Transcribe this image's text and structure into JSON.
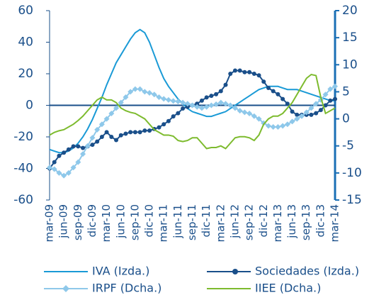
{
  "chart_data": {
    "type": "line",
    "categories": [
      "mar-09",
      null,
      null,
      "jun-09",
      null,
      null,
      "sep-09",
      null,
      null,
      "dic-09",
      null,
      null,
      "mar-10",
      null,
      null,
      "jun-10",
      null,
      null,
      "sep-10",
      null,
      null,
      "dic-10",
      null,
      null,
      "mar-11",
      null,
      null,
      "jun-11",
      null,
      null,
      "sep-11",
      null,
      null,
      "dic-11",
      null,
      null,
      "mar-12",
      null,
      null,
      "jun-12",
      null,
      null,
      "sep-12",
      null,
      null,
      "dic-12",
      null,
      null,
      "mar-13",
      null,
      null,
      "jun-13",
      null,
      null,
      "sep-13",
      null,
      null,
      "dic-13",
      null,
      null,
      "mar-14"
    ],
    "series": [
      {
        "name": "IVA (Izda.)",
        "color": "#1a9ad6",
        "axis": "y",
        "marker": "none",
        "values": [
          -28,
          -29,
          -30,
          -30,
          -29,
          -27,
          -24,
          -20,
          -15,
          -9,
          -2,
          5,
          13,
          20,
          27,
          32,
          37,
          42,
          46,
          48,
          46,
          40,
          32,
          24,
          17,
          12,
          8,
          4,
          1,
          -2,
          -4,
          -5,
          -6,
          -7,
          -7,
          -6,
          -5,
          -4,
          -2,
          0,
          2,
          4,
          6,
          8,
          10,
          11,
          12,
          12,
          12,
          11,
          10,
          10,
          10,
          9,
          8,
          7,
          6,
          5,
          4,
          3,
          3
        ]
      },
      {
        "name": "Sociedades (Izda.)",
        "color": "#1a4f8a",
        "axis": "y",
        "marker": "circle",
        "values": [
          -40,
          -36,
          -32,
          -30,
          -28,
          -26,
          -26,
          -27,
          -26,
          -25,
          -23,
          -20,
          -17,
          -20,
          -22,
          -19,
          -18,
          -17,
          -17,
          -17,
          -16,
          -16,
          -15,
          -14,
          -12,
          -10,
          -7,
          -5,
          -2,
          -1,
          0,
          1,
          3,
          5,
          6,
          7,
          9,
          13,
          20,
          22,
          22,
          21,
          21,
          20,
          19,
          15,
          11,
          9,
          7,
          4,
          1,
          -4,
          -6,
          -6,
          -6,
          -6,
          -5,
          -3,
          0,
          3,
          4
        ]
      },
      {
        "name": "IRPF (Dcha.)",
        "color": "#8ec8ea",
        "axis": "y2",
        "marker": "diamond",
        "values": [
          -9,
          -9.3,
          -10,
          -10.5,
          -10,
          -9,
          -8,
          -6.5,
          -5,
          -3.5,
          -2,
          -1,
          0,
          1,
          2,
          3,
          4,
          5,
          5.5,
          5.5,
          5,
          4.8,
          4.5,
          4,
          3.7,
          3.5,
          3.3,
          3.2,
          3,
          2.8,
          2.5,
          2.2,
          2,
          2.2,
          2.5,
          2.7,
          3,
          2.8,
          2.5,
          2,
          1.5,
          1.2,
          1,
          0.5,
          0,
          -0.8,
          -1.3,
          -1.5,
          -1.5,
          -1.3,
          -1,
          -0.5,
          0,
          0.5,
          1.2,
          2,
          2.8,
          3.5,
          4.5,
          5.5,
          6
        ]
      },
      {
        "name": "IIEE (Dcha.)",
        "color": "#7dbb2e",
        "axis": "y2",
        "marker": "none",
        "values": [
          -3,
          -2.5,
          -2.2,
          -2,
          -1.5,
          -1,
          -0.3,
          0.5,
          1.5,
          2.5,
          3.5,
          4,
          3.5,
          3.5,
          3,
          2,
          1.5,
          1.2,
          1,
          0.5,
          0,
          -1,
          -2,
          -2.5,
          -3,
          -3,
          -3.2,
          -4,
          -4.2,
          -4,
          -3.5,
          -3.5,
          -4.5,
          -5.5,
          -5.3,
          -5.3,
          -5,
          -5.5,
          -4.5,
          -3.5,
          -3.3,
          -3.3,
          -3.5,
          -4,
          -3,
          -1,
          0,
          0.5,
          0.5,
          1,
          2,
          3,
          4.5,
          6,
          7.5,
          8.2,
          8,
          4,
          1,
          1.5,
          2
        ]
      }
    ],
    "ylim": [
      -60,
      60
    ],
    "yticks": [
      -60,
      -40,
      -20,
      0,
      20,
      40,
      60
    ],
    "y2lim": [
      -15,
      20
    ],
    "y2ticks": [
      -15,
      -10,
      -5,
      0,
      5,
      10,
      15,
      20
    ],
    "grid": false
  }
}
